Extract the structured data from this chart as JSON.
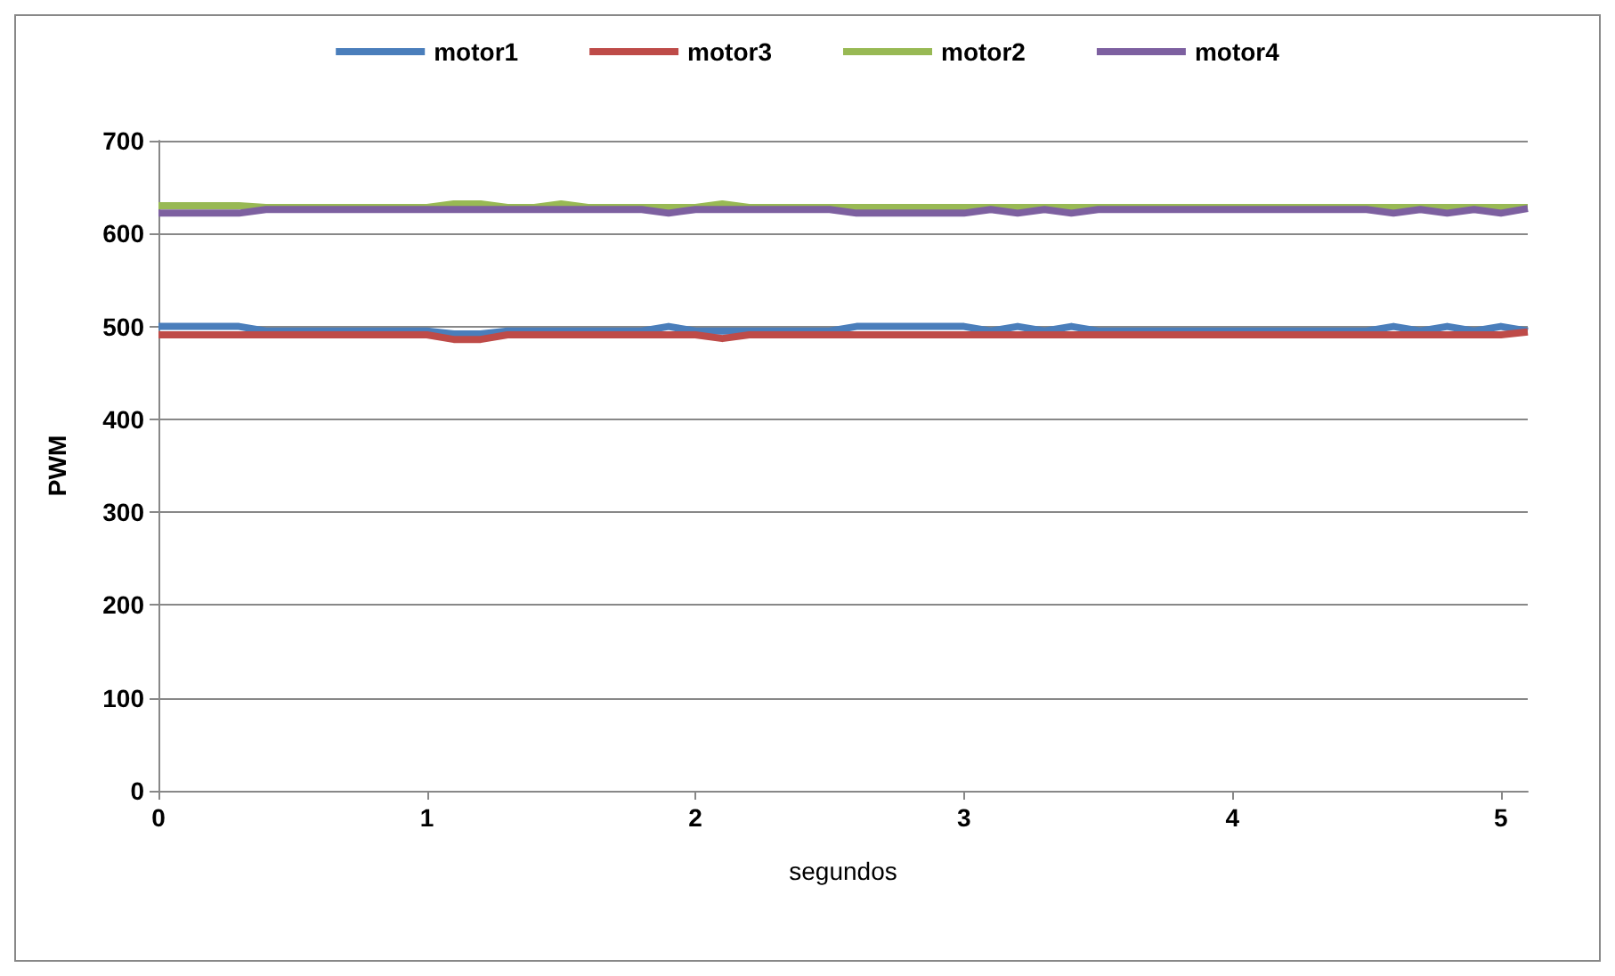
{
  "chart_data": {
    "type": "line",
    "xlabel": "segundos",
    "ylabel": "PWM",
    "x": [
      0,
      0.1,
      0.2,
      0.3,
      0.4,
      0.5,
      0.6,
      0.7,
      0.8,
      0.9,
      1,
      1.1,
      1.2,
      1.3,
      1.4,
      1.5,
      1.6,
      1.7,
      1.8,
      1.9,
      2,
      2.1,
      2.2,
      2.3,
      2.4,
      2.5,
      2.6,
      2.7,
      2.8,
      2.9,
      3,
      3.1,
      3.2,
      3.3,
      3.4,
      3.5,
      3.6,
      3.7,
      3.8,
      3.9,
      4,
      4.1,
      4.2,
      4.3,
      4.4,
      4.5,
      4.6,
      4.7,
      4.8,
      4.9,
      5,
      5.1
    ],
    "series": [
      {
        "name": "motor1",
        "color": "#4a7ebb",
        "values": [
          500,
          500,
          500,
          500,
          495,
          495,
          495,
          495,
          495,
          495,
          495,
          492,
          492,
          495,
          495,
          495,
          495,
          495,
          495,
          500,
          495,
          495,
          495,
          495,
          495,
          495,
          500,
          500,
          500,
          500,
          500,
          495,
          500,
          495,
          500,
          495,
          495,
          495,
          495,
          495,
          495,
          495,
          495,
          495,
          495,
          495,
          500,
          495,
          500,
          495,
          500,
          495
        ]
      },
      {
        "name": "motor3",
        "color": "#be4b48",
        "values": [
          491,
          491,
          491,
          491,
          491,
          491,
          491,
          491,
          491,
          491,
          491,
          486,
          486,
          491,
          491,
          491,
          491,
          491,
          491,
          491,
          491,
          487,
          491,
          491,
          491,
          491,
          491,
          491,
          491,
          491,
          491,
          491,
          491,
          491,
          491,
          491,
          491,
          491,
          491,
          491,
          491,
          491,
          491,
          491,
          491,
          491,
          491,
          491,
          491,
          491,
          491,
          494
        ]
      },
      {
        "name": "motor2",
        "color": "#98b954",
        "values": [
          630,
          630,
          630,
          630,
          628,
          628,
          628,
          628,
          628,
          628,
          628,
          632,
          632,
          628,
          628,
          632,
          628,
          628,
          628,
          628,
          628,
          632,
          628,
          628,
          628,
          628,
          628,
          628,
          628,
          628,
          628,
          628,
          628,
          628,
          628,
          628,
          628,
          628,
          628,
          628,
          628,
          628,
          628,
          628,
          628,
          628,
          628,
          628,
          628,
          628,
          628,
          628
        ]
      },
      {
        "name": "motor4",
        "color": "#7d60a0",
        "values": [
          622,
          622,
          622,
          622,
          626,
          626,
          626,
          626,
          626,
          626,
          626,
          626,
          626,
          626,
          626,
          626,
          626,
          626,
          626,
          622,
          626,
          626,
          626,
          626,
          626,
          626,
          622,
          622,
          622,
          622,
          622,
          626,
          622,
          626,
          622,
          626,
          626,
          626,
          626,
          626,
          626,
          626,
          626,
          626,
          626,
          626,
          622,
          626,
          622,
          626,
          622,
          627
        ]
      }
    ],
    "xlim": [
      0,
      5.1
    ],
    "xticks": [
      0,
      1,
      2,
      3,
      4,
      5
    ],
    "ylim": [
      0,
      700
    ],
    "yticks": [
      0,
      100,
      200,
      300,
      400,
      500,
      600,
      700
    ],
    "grid": "y",
    "legend": "top",
    "marker": "none",
    "line_style": "solid"
  }
}
